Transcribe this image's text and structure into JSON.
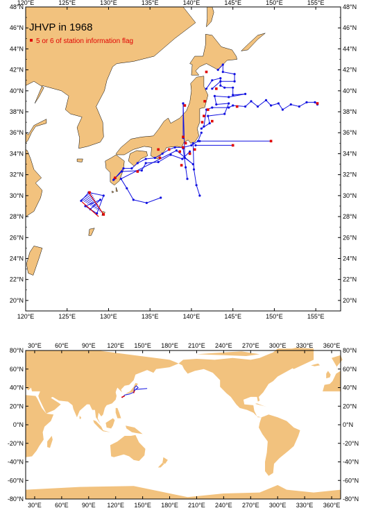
{
  "title": "JHVP in 1968",
  "legend": {
    "label": "5 or 6 of station information flag",
    "marker_color": "#e00000"
  },
  "colors": {
    "land": "#f2c27e",
    "ocean": "#ffffff",
    "track": "#1010e0",
    "flagged": "#e00000",
    "frame": "#000000"
  },
  "top_map": {
    "lon_range": [
      120,
      158
    ],
    "lat_range": [
      19,
      48
    ],
    "x_ticks": [
      "120°E",
      "125°E",
      "130°E",
      "135°E",
      "140°E",
      "145°E",
      "150°E",
      "155°E"
    ],
    "y_ticks": [
      "20°N",
      "22°N",
      "24°N",
      "26°N",
      "28°N",
      "30°N",
      "32°N",
      "34°N",
      "36°N",
      "38°N",
      "40°N",
      "42°N",
      "44°N",
      "46°N",
      "48°N"
    ]
  },
  "bottom_map": {
    "lon_range": [
      20,
      370
    ],
    "lat_range": [
      -80,
      80
    ],
    "x_ticks": [
      "30°E",
      "60°E",
      "90°E",
      "120°E",
      "150°E",
      "180°E",
      "210°E",
      "240°E",
      "270°E",
      "300°E",
      "330°E",
      "360°E"
    ],
    "y_ticks": [
      "80°N",
      "60°N",
      "40°N",
      "20°N",
      "0°N",
      "-20°N",
      "-40°N",
      "-60°N",
      "-80°N"
    ]
  }
}
